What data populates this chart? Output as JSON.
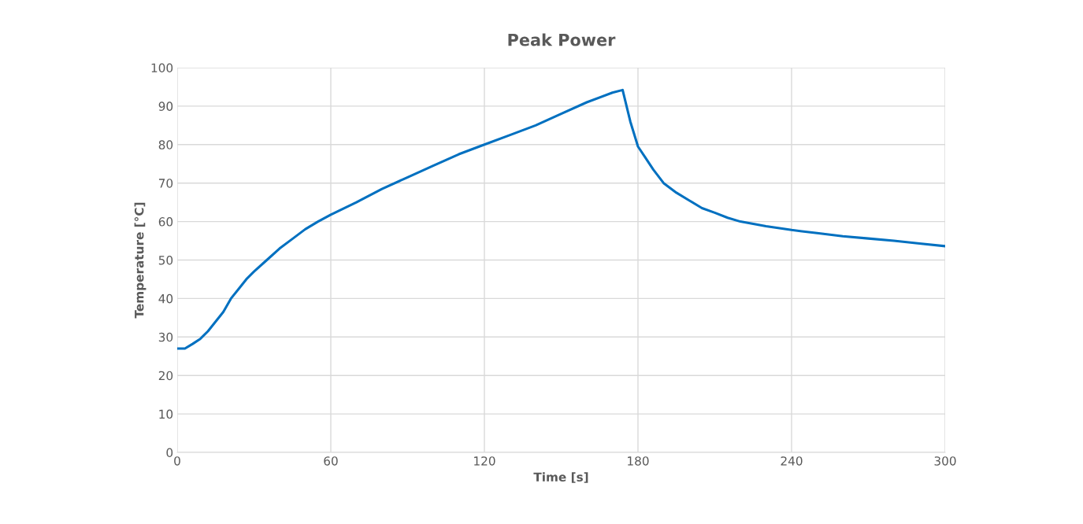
{
  "chart_data": {
    "type": "line",
    "title": "Peak Power",
    "xlabel": "Time [s]",
    "ylabel": "Temperature [°C]",
    "x": [
      0,
      3,
      6,
      9,
      12,
      15,
      18,
      21,
      24,
      27,
      30,
      35,
      40,
      45,
      50,
      55,
      60,
      70,
      80,
      90,
      100,
      110,
      120,
      130,
      140,
      150,
      160,
      170,
      174,
      177,
      180,
      183,
      186,
      190,
      195,
      200,
      205,
      210,
      215,
      220,
      230,
      240,
      250,
      260,
      270,
      280,
      290,
      300
    ],
    "series": [
      {
        "color": "#0070c0",
        "values": [
          27,
          27,
          28.2,
          29.5,
          31.5,
          34,
          36.5,
          40,
          42.5,
          45,
          47,
          50,
          53,
          55.5,
          58,
          60,
          61.8,
          65,
          68.5,
          71.5,
          74.5,
          77.5,
          80,
          82.5,
          85,
          88,
          91,
          93.5,
          94.2,
          86,
          79.5,
          76.5,
          73.5,
          70,
          67.5,
          65.5,
          63.5,
          62.3,
          61,
          60,
          58.8,
          57.8,
          57,
          56.2,
          55.6,
          55,
          54.3,
          53.6
        ]
      }
    ],
    "xlim": [
      0,
      300
    ],
    "xticks": [
      0,
      60,
      120,
      180,
      240,
      300
    ],
    "ylim": [
      0,
      100
    ],
    "yticks": [
      0,
      10,
      20,
      30,
      40,
      50,
      60,
      70,
      80,
      90,
      100
    ],
    "grid": true,
    "legend": false,
    "marker": "none",
    "line_style": "solid"
  }
}
